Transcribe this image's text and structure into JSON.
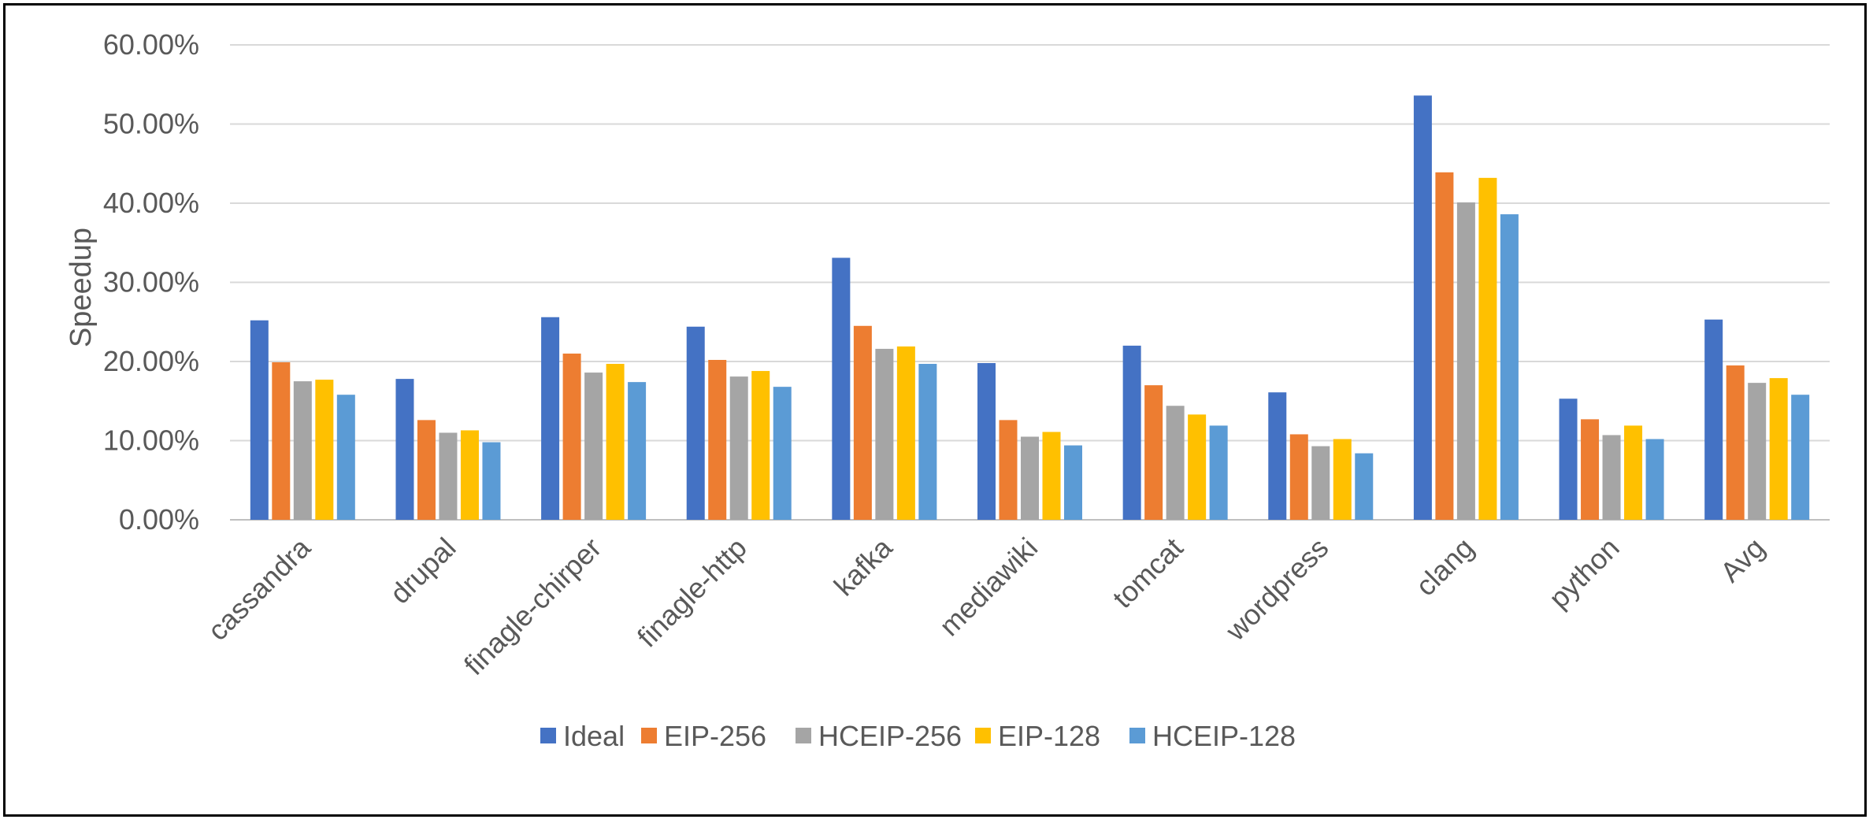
{
  "chart_data": {
    "type": "bar",
    "title": "",
    "xlabel": "",
    "ylabel": "Speedup",
    "ylim": [
      0,
      60
    ],
    "yticks": [
      "0.00%",
      "10.00%",
      "20.00%",
      "30.00%",
      "40.00%",
      "50.00%",
      "60.00%"
    ],
    "grid": true,
    "legend_position": "bottom",
    "categories": [
      "cassandra",
      "drupal",
      "finagle-chirper",
      "finagle-http",
      "kafka",
      "mediawiki",
      "tomcat",
      "wordpress",
      "clang",
      "python",
      "Avg"
    ],
    "series": [
      {
        "name": "Ideal",
        "color": "#4472C4",
        "values": [
          25.2,
          17.8,
          25.6,
          24.4,
          33.1,
          19.8,
          22.0,
          16.1,
          53.6,
          15.3,
          25.3
        ]
      },
      {
        "name": "EIP-256",
        "color": "#ED7D31",
        "values": [
          19.9,
          12.6,
          21.0,
          20.2,
          24.5,
          12.6,
          17.0,
          10.8,
          43.9,
          12.7,
          19.5
        ]
      },
      {
        "name": "HCEIP-256",
        "color": "#A5A5A5",
        "values": [
          17.5,
          11.0,
          18.6,
          18.1,
          21.6,
          10.5,
          14.4,
          9.3,
          40.1,
          10.7,
          17.3
        ]
      },
      {
        "name": "EIP-128",
        "color": "#FFC000",
        "values": [
          17.7,
          11.3,
          19.7,
          18.8,
          21.9,
          11.1,
          13.3,
          10.2,
          43.2,
          11.9,
          17.9
        ]
      },
      {
        "name": "HCEIP-128",
        "color": "#5B9BD5",
        "values": [
          15.8,
          9.8,
          17.4,
          16.8,
          19.7,
          9.4,
          11.9,
          8.4,
          38.6,
          10.2,
          15.8
        ]
      }
    ]
  }
}
